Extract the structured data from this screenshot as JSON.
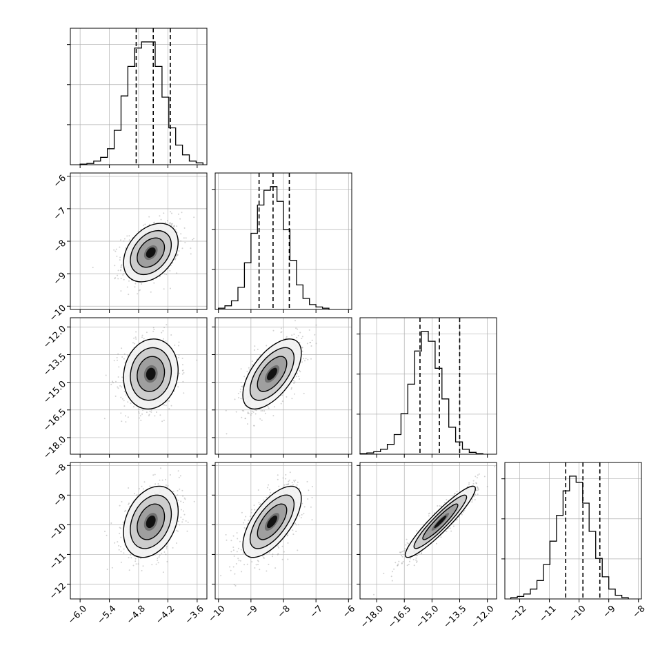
{
  "chart_data": {
    "type": "corner",
    "grid": true,
    "n_params": 4,
    "params": [
      {
        "index": 0,
        "range": [
          -6.2,
          -3.4
        ],
        "ticks": [
          -6.0,
          -5.4,
          -4.8,
          -4.2,
          -3.6
        ],
        "tick_labels": [
          "−6.0",
          "−5.4",
          "−4.8",
          "−4.2",
          "−3.6"
        ],
        "quantiles": [
          -4.85,
          -4.5,
          -4.15
        ],
        "hist_start": -6.0,
        "hist_step": 0.14,
        "hist_counts": [
          0.005,
          0.01,
          0.03,
          0.06,
          0.13,
          0.28,
          0.56,
          0.8,
          0.95,
          1.0,
          1.0,
          0.8,
          0.55,
          0.3,
          0.16,
          0.08,
          0.03,
          0.015
        ],
        "mean": -4.55,
        "sd": 0.28
      },
      {
        "index": 1,
        "range": [
          -10.1,
          -5.9
        ],
        "ticks": [
          -10,
          -9,
          -8,
          -7,
          -6
        ],
        "tick_labels": [
          "−10",
          "−9",
          "−8",
          "−7",
          "−6"
        ],
        "quantiles": [
          -8.75,
          -8.32,
          -7.82
        ],
        "hist_start": -10.0,
        "hist_step": 0.2,
        "hist_counts": [
          0.01,
          0.03,
          0.07,
          0.18,
          0.38,
          0.62,
          0.85,
          0.97,
          1.0,
          0.88,
          0.65,
          0.4,
          0.2,
          0.09,
          0.04,
          0.02,
          0.01
        ],
        "mean": -8.35,
        "sd": 0.45
      },
      {
        "index": 2,
        "range": [
          -18.9,
          -11.5
        ],
        "ticks": [
          -18.0,
          -16.5,
          -15.0,
          -13.5,
          -12.0
        ],
        "tick_labels": [
          "−18.0",
          "−16.5",
          "−15.0",
          "−13.5",
          "−12.0"
        ],
        "quantiles": [
          -15.65,
          -14.6,
          -13.5
        ],
        "hist_start": -18.9,
        "hist_step": 0.37,
        "hist_counts": [
          0.005,
          0.01,
          0.02,
          0.04,
          0.08,
          0.16,
          0.33,
          0.57,
          0.84,
          1.0,
          0.92,
          0.7,
          0.45,
          0.22,
          0.1,
          0.04,
          0.015,
          0.005
        ],
        "mean": -14.55,
        "sd": 0.95
      },
      {
        "index": 3,
        "range": [
          -12.5,
          -7.9
        ],
        "ticks": [
          -12,
          -11,
          -10,
          -9,
          -8
        ],
        "tick_labels": [
          "−12",
          "−11",
          "−10",
          "−9",
          "−8"
        ],
        "quantiles": [
          -10.45,
          -9.87,
          -9.3
        ],
        "hist_start": -12.3,
        "hist_step": 0.22,
        "hist_counts": [
          0.01,
          0.02,
          0.04,
          0.08,
          0.15,
          0.28,
          0.47,
          0.68,
          0.88,
          1.0,
          0.95,
          0.78,
          0.55,
          0.33,
          0.18,
          0.08,
          0.03,
          0.01
        ],
        "mean": -9.9,
        "sd": 0.6
      }
    ],
    "pairs": [
      {
        "x": 0,
        "y": 1,
        "corr": 0.35
      },
      {
        "x": 0,
        "y": 2,
        "corr": 0.1
      },
      {
        "x": 1,
        "y": 2,
        "corr": 0.6
      },
      {
        "x": 0,
        "y": 3,
        "corr": 0.3
      },
      {
        "x": 1,
        "y": 3,
        "corr": 0.65
      },
      {
        "x": 2,
        "y": 3,
        "corr": 0.93
      }
    ],
    "contour_levels": [
      0.5,
      1.0,
      1.5,
      2.0
    ],
    "colors": {
      "hist_line": "#000000",
      "quantile_line": "#000000",
      "contour": "#000000",
      "scatter": "#9a9a9a",
      "density": "#000000",
      "grid": "#b0b0b0",
      "frame": "#000000"
    }
  }
}
